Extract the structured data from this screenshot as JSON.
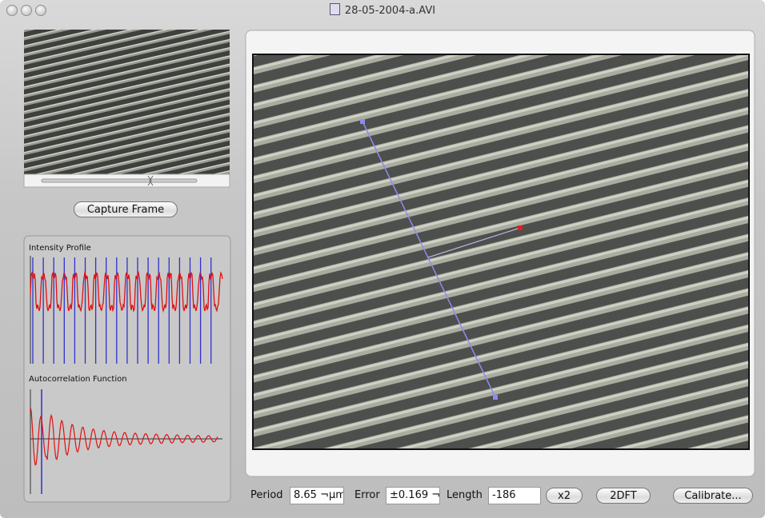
{
  "window": {
    "title": "28-05-2004-a.AVI"
  },
  "left_panel": {
    "capture_button": "Capture Frame",
    "intensity_label": "Intensity Profile",
    "autocorrelation_label": "Autocorrelation Function"
  },
  "controls": {
    "period_label": "Period",
    "period_value": "8.65 ¬µm",
    "error_label": "Error",
    "error_value": "±0.169 ¬",
    "length_label": "Length",
    "length_value": "-186",
    "x2_button": "x2",
    "dft_button": "2DFT",
    "calibrate_button": "Calibrate..."
  }
}
